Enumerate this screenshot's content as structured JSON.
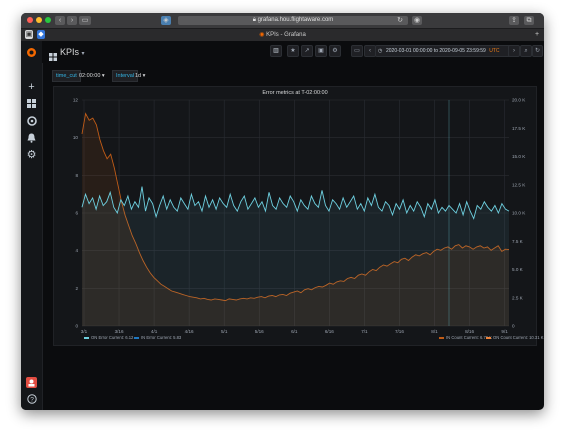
{
  "browser": {
    "url": "grafana.hou.flightaware.com",
    "tab_title": "KPIs - Grafana"
  },
  "dashboard": {
    "title": "KPIs",
    "title_caret": "▾",
    "time_range": "2020-03-01 00:00:00 to 2020-09-05 23:59:59",
    "time_range_tz": "UTC"
  },
  "variables": [
    {
      "label": "time_cut",
      "value": "02:00:00 ▾"
    },
    {
      "label": "Interval",
      "value": "1d ▾"
    }
  ],
  "colors": {
    "cyan": "#6ed0e0",
    "orange": "#c15c17",
    "panel_bg": "#141619",
    "grid": "#2a2d33",
    "text": "#9fa7b3"
  },
  "icons": {
    "sidebar": [
      "grafana-logo-icon",
      "plus-icon",
      "dashboards-icon",
      "explore-icon",
      "bell-icon",
      "gear-icon",
      "user-avatar-icon",
      "help-icon"
    ],
    "navbar": [
      "add-panel-icon",
      "star-icon",
      "share-icon",
      "save-icon",
      "settings-icon",
      "tv-mode-icon",
      "time-back-icon",
      "zoom-out-icon",
      "time-forward-icon",
      "refresh-icon"
    ]
  },
  "chart_data": {
    "type": "line",
    "title": "Error metrics at T-02:00:00",
    "x_ticks": [
      "3/1",
      "3/16",
      "4/1",
      "4/16",
      "5/1",
      "5/16",
      "6/1",
      "6/16",
      "7/1",
      "7/16",
      "8/1",
      "8/16",
      "9/1"
    ],
    "y_left_ticks": [
      "0",
      "2",
      "4",
      "6",
      "8",
      "10",
      "12"
    ],
    "y_left_range": [
      0,
      12
    ],
    "y_right_ticks": [
      "0",
      "2.5 K",
      "5.0 K",
      "7.5 K",
      "10.0 K",
      "12.5 K",
      "15.0 K",
      "17.5 K",
      "20.0 K"
    ],
    "y_right_range": [
      0,
      20000
    ],
    "grid": true,
    "legend_position": "bottom",
    "series": [
      {
        "name": "ON Error",
        "axis": "left",
        "color": "#6ed0e0",
        "legend": "ON Error  Current: 6.12",
        "values": [
          6.3,
          7.0,
          6.5,
          6.8,
          6.2,
          6.9,
          6.4,
          6.6,
          7.1,
          6.3,
          6.0,
          6.7,
          6.4,
          6.9,
          6.2,
          6.6,
          6.3,
          7.4,
          6.1,
          6.8,
          6.5,
          5.8,
          6.4,
          6.9,
          6.2,
          6.7,
          6.3,
          6.1,
          6.8,
          6.5,
          6.2,
          7.0,
          6.4,
          6.6,
          6.1,
          6.9,
          6.3,
          6.7,
          6.2,
          6.8,
          6.5,
          6.3,
          7.0,
          6.4,
          6.1,
          6.6,
          6.9,
          6.2,
          6.5,
          6.8,
          6.3,
          6.6,
          6.1,
          7.1,
          6.4,
          6.2,
          6.8,
          6.5,
          6.3,
          6.9,
          6.6,
          6.1,
          6.7,
          6.4,
          6.2,
          6.9,
          6.5,
          6.3,
          7.2,
          6.4,
          6.1,
          6.7,
          6.5,
          6.2,
          6.8,
          6.3,
          6.6,
          6.9,
          6.2,
          6.5,
          6.1,
          6.8,
          6.4,
          7.0,
          6.3,
          6.1,
          6.6,
          6.4,
          5.9,
          6.5,
          6.2,
          6.7,
          6.0,
          6.4,
          6.1,
          6.6,
          6.3,
          5.8,
          6.5,
          6.2,
          6.7,
          6.0,
          6.3,
          6.1,
          6.4,
          6.2,
          6.0,
          6.5,
          5.9,
          6.6,
          6.1,
          5.7,
          6.4,
          6.2,
          6.6,
          6.3,
          6.1,
          6.4,
          6.0,
          6.5,
          6.2,
          6.1
        ]
      },
      {
        "name": "IN Error",
        "axis": "left",
        "color": "#1f78c1",
        "legend": "IN Error  Current: 5.83",
        "values": []
      },
      {
        "name": "IN Count",
        "axis": "right",
        "color": "#c15c17",
        "legend": "IN Count  Current: 6.76 K",
        "values": [
          17000,
          18800,
          18200,
          18400,
          17800,
          16500,
          15500,
          14800,
          15200,
          14000,
          12500,
          11000,
          9800,
          8900,
          8000,
          7300,
          6500,
          5800,
          5200,
          4700,
          4300,
          4000,
          3700,
          3500,
          3300,
          3100,
          3000,
          2900,
          2800,
          2700,
          2600,
          2550,
          2500,
          2400,
          2450,
          2350,
          2300,
          2400,
          2350,
          2300,
          2250,
          2400,
          2350,
          2300,
          2400,
          2450,
          2400,
          2500,
          2450,
          2550,
          2600,
          2500,
          2650,
          2700,
          2600,
          2750,
          2800,
          2700,
          2900,
          3000,
          3100,
          2950,
          3200,
          3300,
          3200,
          3400,
          3500,
          3450,
          3600,
          3800,
          3700,
          3900,
          4000,
          3950,
          4200,
          4300,
          4200,
          4500,
          4600,
          4500,
          4800,
          5000,
          4900,
          5200,
          5400,
          5300,
          5500,
          5700,
          5600,
          5900,
          6000,
          5800,
          6100,
          6300,
          6200,
          6400,
          6500,
          6300,
          6600,
          6800,
          6700,
          6900,
          7000,
          6800,
          7100,
          7200,
          6900,
          7100,
          7000,
          6800,
          7000,
          7100,
          6900,
          7000,
          6700,
          6900,
          7100,
          6600,
          6800,
          6760
        ]
      },
      {
        "name": "ON Count",
        "axis": "right",
        "color": "#ef843c",
        "legend": "ON Count  Current: 10.31 K",
        "values": []
      }
    ]
  }
}
